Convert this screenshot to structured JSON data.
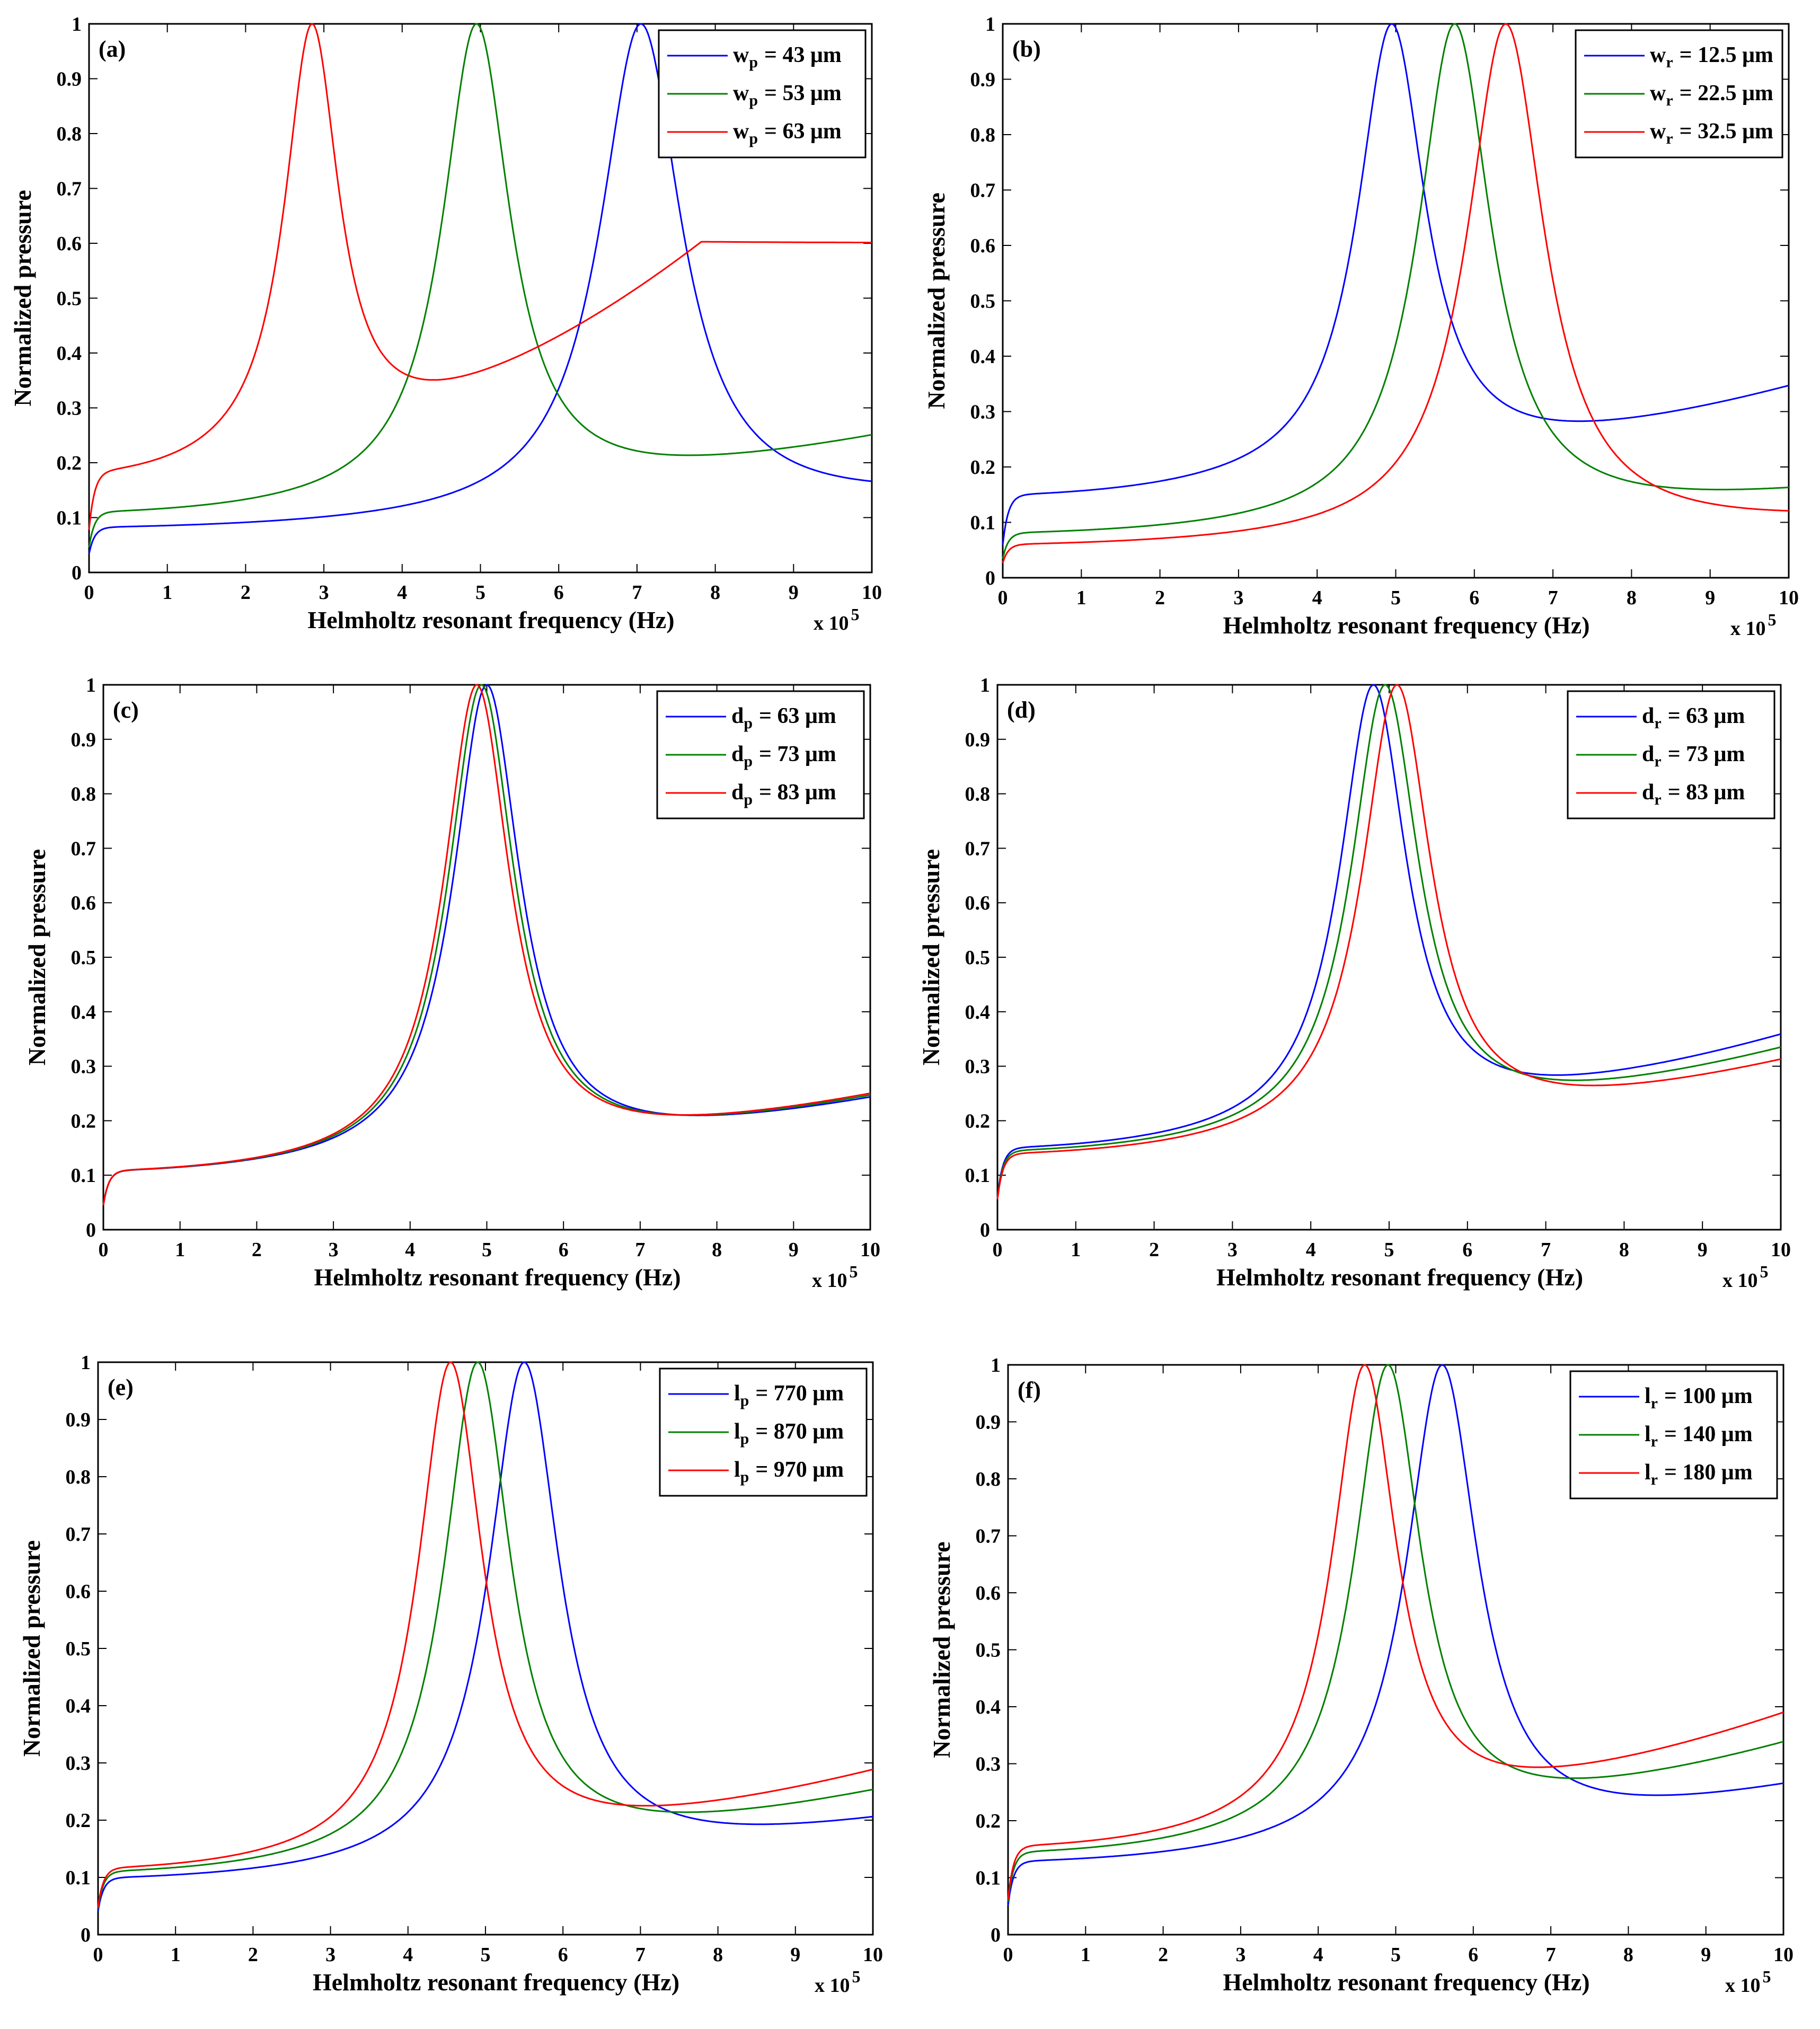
{
  "chart_data": [
    {
      "type": "line",
      "panel": "(a)",
      "title": "",
      "xlabel": "Helmholtz resonant frequency (Hz)",
      "ylabel": "Normalized pressure",
      "x_multiplier_label": "x 10",
      "x_multiplier_exponent": "5",
      "xlim": [
        0,
        10
      ],
      "ylim": [
        0,
        1
      ],
      "xticks": [
        "0",
        "1",
        "2",
        "3",
        "4",
        "5",
        "6",
        "7",
        "8",
        "9",
        "10"
      ],
      "yticks": [
        "0",
        "0.1",
        "0.2",
        "0.3",
        "0.4",
        "0.5",
        "0.6",
        "0.7",
        "0.8",
        "0.9",
        "1"
      ],
      "legend_position": "top-right",
      "series": [
        {
          "name": "w_p = 43 μm",
          "sym": "w",
          "sub": "p",
          "value": "= 43 μm",
          "color": "#0000ff",
          "peak": 7.05,
          "base": 0.075
        },
        {
          "name": "w_p = 53 μm",
          "sym": "w",
          "sub": "p",
          "value": "= 53 μm",
          "color": "#008000",
          "peak": 4.95,
          "base": 0.1
        },
        {
          "name": "w_p = 63 μm",
          "sym": "w",
          "sub": "p",
          "value": "= 63 μm",
          "color": "#ff0000",
          "peak": 2.85,
          "base": 0.165
        }
      ]
    },
    {
      "type": "line",
      "panel": "(b)",
      "title": "",
      "xlabel": "Helmholtz resonant frequency (Hz)",
      "ylabel": "Normalized pressure",
      "x_multiplier_label": "x 10",
      "x_multiplier_exponent": "5",
      "xlim": [
        0,
        10
      ],
      "ylim": [
        0,
        1
      ],
      "xticks": [
        "0",
        "1",
        "2",
        "3",
        "4",
        "5",
        "6",
        "7",
        "8",
        "9",
        "10"
      ],
      "yticks": [
        "0",
        "0.1",
        "0.2",
        "0.3",
        "0.4",
        "0.5",
        "0.6",
        "0.7",
        "0.8",
        "0.9",
        "1"
      ],
      "legend_position": "top-right",
      "series": [
        {
          "name": "w_r = 12.5 μm",
          "sym": "w",
          "sub": "r",
          "value": "= 12.5 μm",
          "color": "#0000ff",
          "peak": 4.95,
          "base": 0.14
        },
        {
          "name": "w_r = 22.5 μm",
          "sym": "w",
          "sub": "r",
          "value": "= 22.5 μm",
          "color": "#008000",
          "peak": 5.75,
          "base": 0.072
        },
        {
          "name": "w_r = 32.5 μm",
          "sym": "w",
          "sub": "r",
          "value": "= 32.5 μm",
          "color": "#ff0000",
          "peak": 6.4,
          "base": 0.052
        }
      ]
    },
    {
      "type": "line",
      "panel": "(c)",
      "title": "",
      "xlabel": "Helmholtz resonant frequency (Hz)",
      "ylabel": "Normalized pressure",
      "x_multiplier_label": "x 10",
      "x_multiplier_exponent": "5",
      "xlim": [
        0,
        10
      ],
      "ylim": [
        0,
        1
      ],
      "xticks": [
        "0",
        "1",
        "2",
        "3",
        "4",
        "5",
        "6",
        "7",
        "8",
        "9",
        "10"
      ],
      "yticks": [
        "0",
        "0.1",
        "0.2",
        "0.3",
        "0.4",
        "0.5",
        "0.6",
        "0.7",
        "0.8",
        "0.9",
        "1"
      ],
      "legend_position": "top-right",
      "series": [
        {
          "name": "d_p = 63 μm",
          "sym": "d",
          "sub": "p",
          "value": "= 63 μm",
          "color": "#0000ff",
          "peak": 5.0,
          "base": 0.098
        },
        {
          "name": "d_p = 73 μm",
          "sym": "d",
          "sub": "p",
          "value": "= 73 μm",
          "color": "#008000",
          "peak": 4.93,
          "base": 0.098
        },
        {
          "name": "d_p = 83 μm",
          "sym": "d",
          "sub": "p",
          "value": "= 83 μm",
          "color": "#ff0000",
          "peak": 4.87,
          "base": 0.098
        }
      ]
    },
    {
      "type": "line",
      "panel": "(d)",
      "title": "",
      "xlabel": "Helmholtz resonant frequency (Hz)",
      "ylabel": "Normalized pressure",
      "x_multiplier_label": "x 10",
      "x_multiplier_exponent": "5",
      "xlim": [
        0,
        10
      ],
      "ylim": [
        0,
        1
      ],
      "xticks": [
        "0",
        "1",
        "2",
        "3",
        "4",
        "5",
        "6",
        "7",
        "8",
        "9",
        "10"
      ],
      "yticks": [
        "0",
        "0.1",
        "0.2",
        "0.3",
        "0.4",
        "0.5",
        "0.6",
        "0.7",
        "0.8",
        "0.9",
        "1"
      ],
      "legend_position": "top-right",
      "series": [
        {
          "name": "d_r = 63 μm",
          "sym": "d",
          "sub": "r",
          "value": "= 63 μm",
          "color": "#0000ff",
          "peak": 4.8,
          "base": 0.14
        },
        {
          "name": "d_r = 73 μm",
          "sym": "d",
          "sub": "r",
          "value": "= 73 μm",
          "color": "#008000",
          "peak": 4.95,
          "base": 0.135
        },
        {
          "name": "d_r = 83 μm",
          "sym": "d",
          "sub": "r",
          "value": "= 83 μm",
          "color": "#ff0000",
          "peak": 5.1,
          "base": 0.13
        }
      ]
    },
    {
      "type": "line",
      "panel": "(e)",
      "title": "",
      "xlabel": "Helmholtz resonant frequency (Hz)",
      "ylabel": "Normalized pressure",
      "x_multiplier_label": "x 10",
      "x_multiplier_exponent": "5",
      "xlim": [
        0,
        10
      ],
      "ylim": [
        0,
        1
      ],
      "xticks": [
        "0",
        "1",
        "2",
        "3",
        "4",
        "5",
        "6",
        "7",
        "8",
        "9",
        "10"
      ],
      "yticks": [
        "0",
        "0.1",
        "0.2",
        "0.3",
        "0.4",
        "0.5",
        "0.6",
        "0.7",
        "0.8",
        "0.9",
        "1"
      ],
      "legend_position": "top-right",
      "series": [
        {
          "name": "l_p = 770 μm",
          "sym": "l",
          "sub": "p",
          "value": "= 770 μm",
          "color": "#0000ff",
          "peak": 5.5,
          "base": 0.09
        },
        {
          "name": "l_p = 870 μm",
          "sym": "l",
          "sub": "p",
          "value": "= 870 μm",
          "color": "#008000",
          "peak": 4.9,
          "base": 0.1
        },
        {
          "name": "l_p = 970 μm",
          "sym": "l",
          "sub": "p",
          "value": "= 970 μm",
          "color": "#ff0000",
          "peak": 4.55,
          "base": 0.105
        }
      ]
    },
    {
      "type": "line",
      "panel": "(f)",
      "title": "",
      "xlabel": "Helmholtz resonant frequency (Hz)",
      "ylabel": "Normalized pressure",
      "x_multiplier_label": "x 10",
      "x_multiplier_exponent": "5",
      "xlim": [
        0,
        10
      ],
      "ylim": [
        0,
        1
      ],
      "xticks": [
        "0",
        "1",
        "2",
        "3",
        "4",
        "5",
        "6",
        "7",
        "8",
        "9",
        "10"
      ],
      "yticks": [
        "0",
        "0.1",
        "0.2",
        "0.3",
        "0.4",
        "0.5",
        "0.6",
        "0.7",
        "0.8",
        "0.9",
        "1"
      ],
      "legend_position": "top-right",
      "series": [
        {
          "name": "l_r = 100 μm",
          "sym": "l",
          "sub": "r",
          "value": "= 100 μm",
          "color": "#0000ff",
          "peak": 5.6,
          "base": 0.12
        },
        {
          "name": "l_r = 140 μm",
          "sym": "l",
          "sub": "r",
          "value": "= 140 μm",
          "color": "#008000",
          "peak": 4.9,
          "base": 0.135
        },
        {
          "name": "l_r = 180 μm",
          "sym": "l",
          "sub": "r",
          "value": "= 180 μm",
          "color": "#ff0000",
          "peak": 4.6,
          "base": 0.145
        }
      ]
    }
  ]
}
